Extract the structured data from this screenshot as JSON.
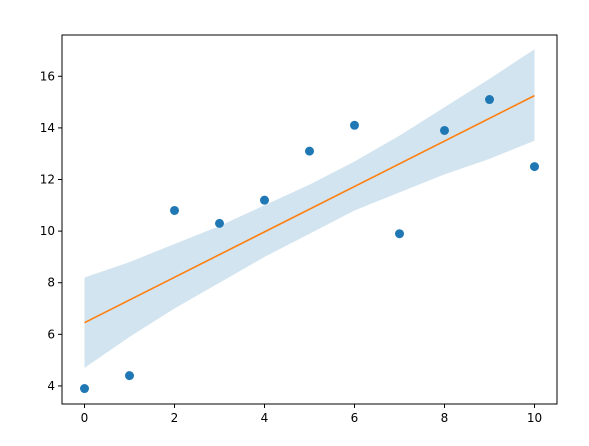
{
  "chart_data": {
    "type": "scatter",
    "title": "",
    "xlabel": "",
    "ylabel": "",
    "xlim": [
      -0.5,
      10.5
    ],
    "ylim": [
      3.3,
      17.6
    ],
    "xticks": [
      0,
      2,
      4,
      6,
      8,
      10
    ],
    "yticks": [
      4,
      6,
      8,
      10,
      12,
      14,
      16
    ],
    "grid": false,
    "series": [
      {
        "kind": "points",
        "color": "#1f77b4",
        "x": [
          0,
          1,
          2,
          3,
          4,
          5,
          6,
          7,
          8,
          9,
          10
        ],
        "y": [
          3.9,
          4.4,
          10.8,
          10.3,
          11.2,
          13.1,
          14.1,
          9.9,
          13.9,
          15.1,
          12.5
        ]
      },
      {
        "kind": "line",
        "color": "#ff7f0e",
        "x": [
          0,
          10
        ],
        "y": [
          6.45,
          15.25
        ]
      },
      {
        "kind": "band",
        "color": "#1f77b4",
        "opacity": 0.2,
        "x": [
          0,
          1,
          2,
          3,
          4,
          5,
          6,
          7,
          8,
          9,
          10
        ],
        "lower": [
          4.7,
          5.9,
          7.0,
          8.0,
          9.0,
          9.9,
          10.8,
          11.5,
          12.2,
          12.8,
          13.5
        ],
        "upper": [
          8.2,
          8.8,
          9.5,
          10.2,
          11.0,
          11.8,
          12.7,
          13.7,
          14.8,
          15.9,
          17.05
        ]
      }
    ]
  }
}
